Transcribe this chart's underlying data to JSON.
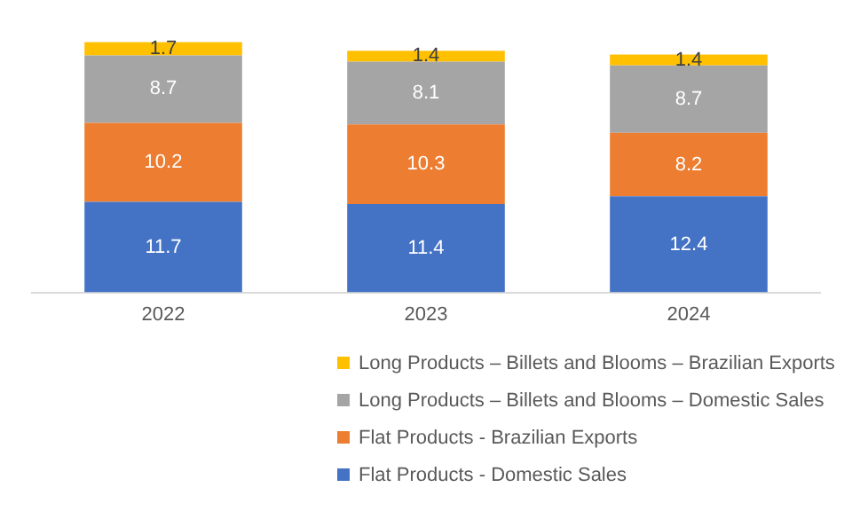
{
  "chart_data": {
    "type": "bar",
    "stacked": true,
    "data_labels": true,
    "legend": "bottom",
    "tick_labels": "x",
    "grid": false,
    "categories": [
      "2022",
      "2023",
      "2024"
    ],
    "series": [
      {
        "name": "Flat Products - Domestic Sales",
        "color": "#4472c4",
        "values": [
          11.7,
          11.4,
          12.4
        ]
      },
      {
        "name": "Flat Products - Brazilian Exports",
        "color": "#ed7d31",
        "values": [
          10.2,
          10.3,
          8.2
        ]
      },
      {
        "name": "Long Products – Billets and Blooms – Domestic Sales",
        "color": "#a5a5a5",
        "values": [
          8.7,
          8.1,
          8.7
        ]
      },
      {
        "name": "Long Products – Billets and Blooms – Brazilian Exports",
        "color": "#ffc000",
        "values": [
          1.7,
          1.4,
          1.4
        ]
      }
    ]
  }
}
